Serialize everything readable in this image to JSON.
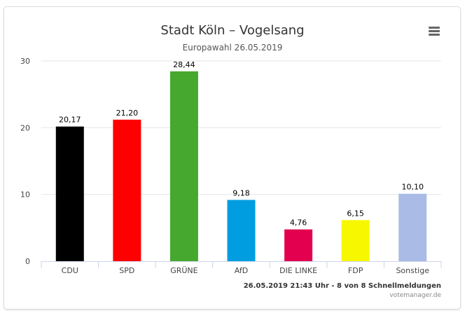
{
  "chart_data": {
    "type": "bar",
    "title": "Stadt Köln – Vogelsang",
    "subtitle": "Europawahl 26.05.2019",
    "categories": [
      "CDU",
      "SPD",
      "GRÜNE",
      "AfD",
      "DIE LINKE",
      "FDP",
      "Sonstige"
    ],
    "values": [
      20.17,
      21.2,
      28.44,
      9.18,
      4.76,
      6.15,
      10.1
    ],
    "value_labels": [
      "20,17",
      "21,20",
      "28,44",
      "9,18",
      "4,76",
      "6,15",
      "10,10"
    ],
    "colors": [
      "#000000",
      "#ff0000",
      "#46a82f",
      "#009ee0",
      "#e3004f",
      "#f7f700",
      "#aabbe5"
    ],
    "ylim": [
      0,
      30
    ],
    "yticks": [
      0,
      10,
      20,
      30
    ],
    "grid": true,
    "xlabel": "",
    "ylabel": ""
  },
  "credits": {
    "line1": "26.05.2019 21:43 Uhr - 8 von 8 Schnellmeldungen",
    "line2": "votemanager.de"
  },
  "menu_icon": "hamburger-menu-icon"
}
